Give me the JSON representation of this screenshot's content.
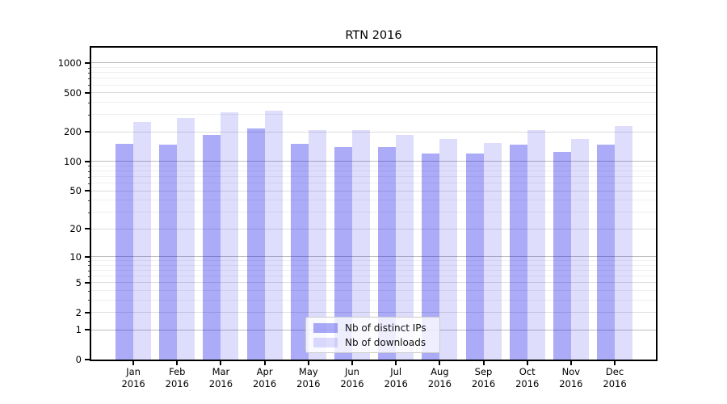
{
  "chart_data": {
    "type": "bar",
    "title": "RTN 2016",
    "categories": [
      "Jan",
      "Feb",
      "Mar",
      "Apr",
      "May",
      "Jun",
      "Jul",
      "Aug",
      "Sep",
      "Oct",
      "Nov",
      "Dec"
    ],
    "year_label": "2016",
    "series": [
      {
        "name": "Nb of distinct IPs",
        "key": "distinct-ips",
        "color": "rgba(0,0,230,0.33)",
        "color_hex": "#a9a9f6",
        "values": [
          150,
          148,
          188,
          215,
          152,
          141,
          139,
          120,
          120,
          149,
          125,
          149
        ]
      },
      {
        "name": "Nb of downloads",
        "key": "downloads",
        "color": "rgba(0,0,230,0.13)",
        "color_hex": "#dedef9",
        "values": [
          254,
          279,
          316,
          327,
          209,
          207,
          188,
          168,
          155,
          209,
          170,
          230
        ]
      }
    ],
    "yscale": "log1p",
    "ylim": [
      0,
      1430
    ],
    "yticks": [
      0,
      1,
      2,
      5,
      10,
      20,
      50,
      100,
      200,
      500,
      1000
    ],
    "yticks_major": [
      1,
      10,
      100,
      1000
    ],
    "grid": true,
    "legend_position": "lower-center",
    "xlabel": "",
    "ylabel": ""
  }
}
